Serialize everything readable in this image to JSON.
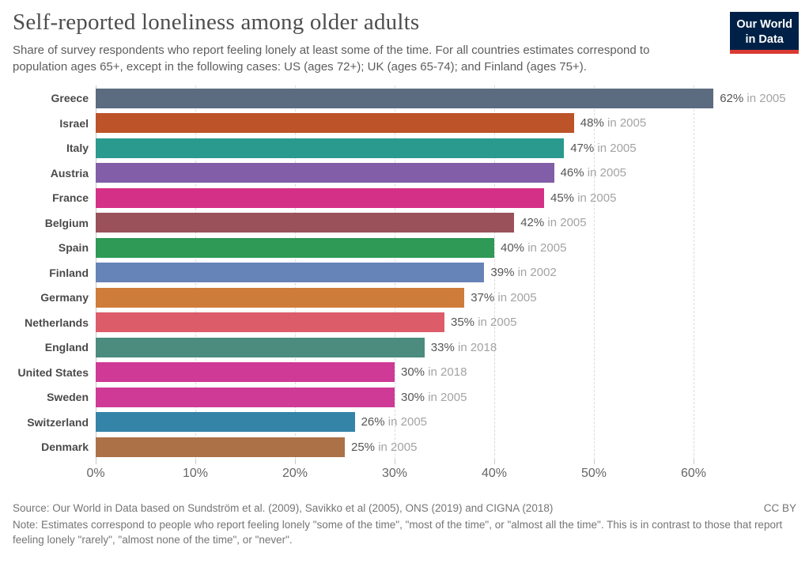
{
  "header": {
    "title": "Self-reported loneliness among older adults",
    "subtitle": "Share of survey respondents who report feeling lonely at least some of the time. For all countries estimates correspond to population ages 65+, except in the following cases: US (ages 72+); UK (ages 65-74); and Finland (ages 75+).",
    "logo": {
      "line1": "Our World",
      "line2": "in Data",
      "bg_color": "#002147",
      "accent_color": "#d93a32"
    }
  },
  "chart_data": {
    "type": "bar",
    "orientation": "horizontal",
    "value_unit": "%",
    "xlim": [
      0,
      66.5
    ],
    "grid": true,
    "x_ticks": [
      0,
      10,
      20,
      30,
      40,
      50,
      60
    ],
    "x_tick_labels": [
      "0%",
      "10%",
      "20%",
      "30%",
      "40%",
      "50%",
      "60%"
    ],
    "rows": [
      {
        "country": "Greece",
        "value": 62,
        "year": 2005,
        "value_label": "62%",
        "year_label": "in 2005",
        "color": "#5b6b80"
      },
      {
        "country": "Israel",
        "value": 48,
        "year": 2005,
        "value_label": "48%",
        "year_label": "in 2005",
        "color": "#bd5329"
      },
      {
        "country": "Italy",
        "value": 47,
        "year": 2005,
        "value_label": "47%",
        "year_label": "in 2005",
        "color": "#2a998e"
      },
      {
        "country": "Austria",
        "value": 46,
        "year": 2005,
        "value_label": "46%",
        "year_label": "in 2005",
        "color": "#815ea7"
      },
      {
        "country": "France",
        "value": 45,
        "year": 2005,
        "value_label": "45%",
        "year_label": "in 2005",
        "color": "#d53087"
      },
      {
        "country": "Belgium",
        "value": 42,
        "year": 2005,
        "value_label": "42%",
        "year_label": "in 2005",
        "color": "#9b5159"
      },
      {
        "country": "Spain",
        "value": 40,
        "year": 2005,
        "value_label": "40%",
        "year_label": "in 2005",
        "color": "#2f9956"
      },
      {
        "country": "Finland",
        "value": 39,
        "year": 2002,
        "value_label": "39%",
        "year_label": "in 2002",
        "color": "#6784b8"
      },
      {
        "country": "Germany",
        "value": 37,
        "year": 2005,
        "value_label": "37%",
        "year_label": "in 2005",
        "color": "#ce7c3a"
      },
      {
        "country": "Netherlands",
        "value": 35,
        "year": 2005,
        "value_label": "35%",
        "year_label": "in 2005",
        "color": "#dc5d69"
      },
      {
        "country": "England",
        "value": 33,
        "year": 2018,
        "value_label": "33%",
        "year_label": "in 2018",
        "color": "#4b8c7e"
      },
      {
        "country": "United States",
        "value": 30,
        "year": 2018,
        "value_label": "30%",
        "year_label": "in 2018",
        "color": "#ce3a96"
      },
      {
        "country": "Sweden",
        "value": 30,
        "year": 2005,
        "value_label": "30%",
        "year_label": "in 2005",
        "color": "#ce3a96"
      },
      {
        "country": "Switzerland",
        "value": 26,
        "year": 2005,
        "value_label": "26%",
        "year_label": "in 2005",
        "color": "#3484a8"
      },
      {
        "country": "Denmark",
        "value": 25,
        "year": 2005,
        "value_label": "25%",
        "year_label": "in 2005",
        "color": "#ac7147"
      }
    ]
  },
  "footer": {
    "source": "Source: Our World in Data based on Sundström et al. (2009), Savikko et al (2005), ONS (2019) and CIGNA (2018)",
    "license": "CC BY",
    "note": "Note: Estimates correspond to people who report feeling lonely \"some of the time\", \"most of the time\", or \"almost all the time\". This is in contrast to those that report feeling lonely \"rarely\", \"almost none of the time\", or \"never\"."
  }
}
